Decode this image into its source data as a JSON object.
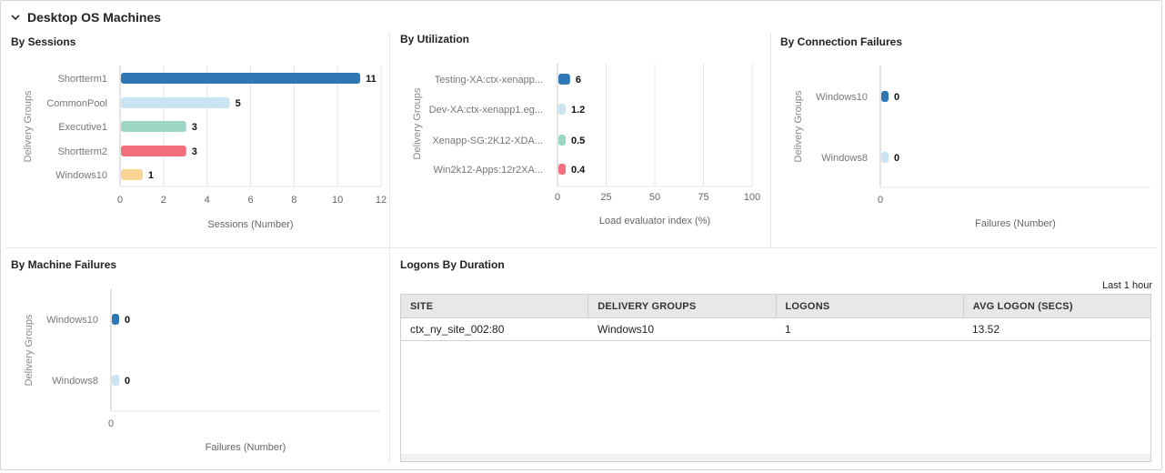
{
  "header": {
    "title": "Desktop OS Machines"
  },
  "sections": {
    "sessions": "By Sessions",
    "utilization": "By Utilization",
    "connection_failures": "By Connection Failures",
    "machine_failures": "By Machine Failures",
    "logons": "Logons By Duration"
  },
  "colors": {
    "c1": "#2f78b5",
    "c2": "#c9e5f2",
    "c3": "#9bd7c4",
    "c4": "#f2707e",
    "c5": "#f8d594"
  },
  "charts": {
    "sessions": {
      "type": "bar",
      "orientation": "horizontal",
      "ylabel": "Delivery Groups",
      "xlabel": "Sessions (Number)",
      "categories": [
        "Shortterm1",
        "CommonPool",
        "Executive1",
        "Shortterm2",
        "Windows10"
      ],
      "values": [
        11,
        5,
        3,
        3,
        1
      ],
      "value_labels": [
        "11",
        "5",
        "3",
        "3",
        "1"
      ],
      "xlim": [
        0,
        12
      ],
      "ticks": [
        0,
        2,
        4,
        6,
        8,
        10,
        12
      ],
      "tick_labels": [
        "0",
        "2",
        "4",
        "6",
        "8",
        "10",
        "12"
      ],
      "colors": [
        "#2f78b5",
        "#c9e5f2",
        "#9bd7c4",
        "#f2707e",
        "#f8d594"
      ]
    },
    "utilization": {
      "type": "bar",
      "orientation": "horizontal",
      "ylabel": "Delivery Groups",
      "xlabel": "Load evaluator index (%)",
      "categories": [
        "Testing-XA:ctx-xenapp...",
        "Dev-XA:ctx-xenapp1.eg...",
        "Xenapp-SG:2K12-XDA...",
        "Win2k12-Apps:12r2XA..."
      ],
      "values": [
        6,
        1.2,
        0.5,
        0.4
      ],
      "value_labels": [
        "6",
        "1.2",
        "0.5",
        "0.4"
      ],
      "xlim": [
        0,
        100
      ],
      "ticks": [
        0,
        25,
        50,
        75,
        100
      ],
      "tick_labels": [
        "0",
        "25",
        "50",
        "75",
        "100"
      ],
      "colors": [
        "#2f78b5",
        "#c9e5f2",
        "#9bd7c4",
        "#f2707e"
      ]
    },
    "connection_failures": {
      "type": "bar",
      "orientation": "horizontal",
      "ylabel": "Delivery Groups",
      "xlabel": "Failures (Number)",
      "categories": [
        "Windows10",
        "Windows8"
      ],
      "values": [
        0,
        0
      ],
      "value_labels": [
        "0",
        "0"
      ],
      "xlim": [
        0,
        1
      ],
      "ticks": [
        0
      ],
      "tick_labels": [
        "0"
      ],
      "colors": [
        "#2f78b5",
        "#c9e5f2"
      ]
    },
    "machine_failures": {
      "type": "bar",
      "orientation": "horizontal",
      "ylabel": "Delivery Groups",
      "xlabel": "Failures (Number)",
      "categories": [
        "Windows10",
        "Windows8"
      ],
      "values": [
        0,
        0
      ],
      "value_labels": [
        "0",
        "0"
      ],
      "xlim": [
        0,
        1
      ],
      "ticks": [
        0
      ],
      "tick_labels": [
        "0"
      ],
      "colors": [
        "#2f78b5",
        "#c9e5f2"
      ]
    }
  },
  "chart_data": [
    {
      "type": "bar",
      "title": "By Sessions",
      "xlabel": "Sessions (Number)",
      "ylabel": "Delivery Groups",
      "categories": [
        "Shortterm1",
        "CommonPool",
        "Executive1",
        "Shortterm2",
        "Windows10"
      ],
      "values": [
        11,
        5,
        3,
        3,
        1
      ],
      "xlim": [
        0,
        12
      ]
    },
    {
      "type": "bar",
      "title": "By Utilization",
      "xlabel": "Load evaluator index (%)",
      "ylabel": "Delivery Groups",
      "categories": [
        "Testing-XA:ctx-xenapp...",
        "Dev-XA:ctx-xenapp1.eg...",
        "Xenapp-SG:2K12-XDA...",
        "Win2k12-Apps:12r2XA..."
      ],
      "values": [
        6,
        1.2,
        0.5,
        0.4
      ],
      "xlim": [
        0,
        100
      ]
    },
    {
      "type": "bar",
      "title": "By Connection Failures",
      "xlabel": "Failures (Number)",
      "ylabel": "Delivery Groups",
      "categories": [
        "Windows10",
        "Windows8"
      ],
      "values": [
        0,
        0
      ]
    },
    {
      "type": "bar",
      "title": "By Machine Failures",
      "xlabel": "Failures (Number)",
      "ylabel": "Delivery Groups",
      "categories": [
        "Windows10",
        "Windows8"
      ],
      "values": [
        0,
        0
      ]
    },
    {
      "type": "table",
      "title": "Logons By Duration",
      "columns": [
        "SITE",
        "DELIVERY GROUPS",
        "LOGONS",
        "AVG LOGON (SECS)"
      ],
      "rows": [
        [
          "ctx_ny_site_002:80",
          "Windows10",
          "1",
          "13.52"
        ]
      ]
    }
  ],
  "logons": {
    "range": "Last 1 hour",
    "columns": [
      "SITE",
      "DELIVERY GROUPS",
      "LOGONS",
      "AVG LOGON (SECS)"
    ],
    "rows": [
      [
        "ctx_ny_site_002:80",
        "Windows10",
        "1",
        "13.52"
      ]
    ]
  }
}
